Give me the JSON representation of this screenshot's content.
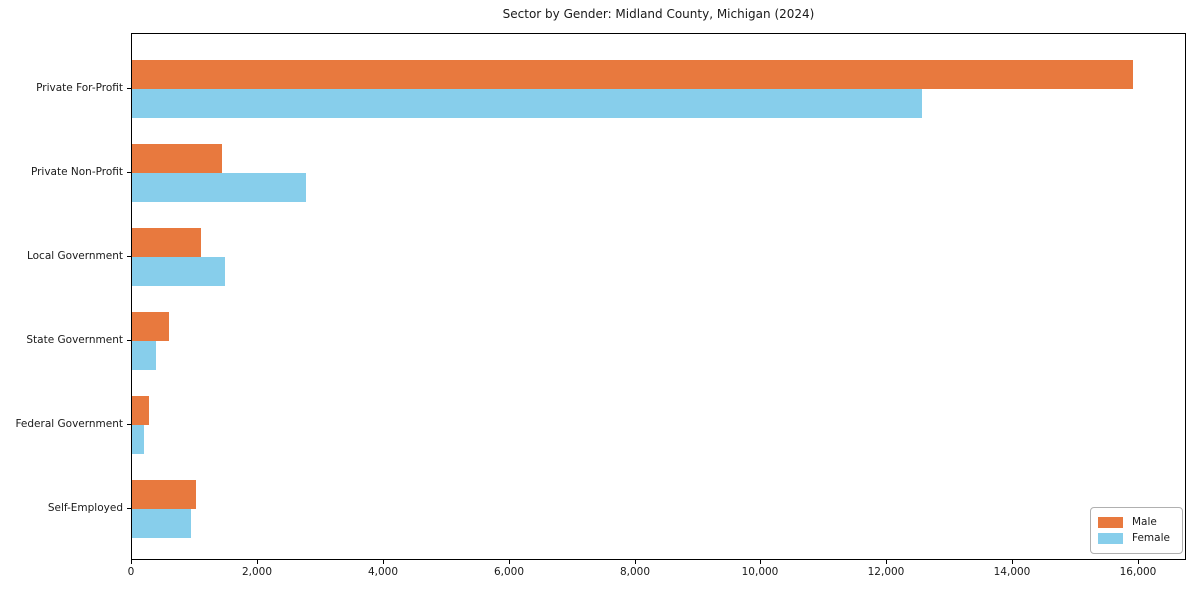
{
  "chart_data": {
    "type": "bar",
    "orientation": "horizontal",
    "title": "Sector by Gender: Midland County, Michigan (2024)",
    "categories": [
      "Private For-Profit",
      "Private Non-Profit",
      "Local Government",
      "State Government",
      "Federal Government",
      "Self-Employed"
    ],
    "series": [
      {
        "name": "Male",
        "color": "#e8793e",
        "values": [
          15900,
          1430,
          1090,
          590,
          270,
          1020
        ]
      },
      {
        "name": "Female",
        "color": "#87ceeb",
        "values": [
          12550,
          2760,
          1480,
          380,
          190,
          940
        ]
      }
    ],
    "xlabel": "",
    "ylabel": "",
    "xlim": [
      0,
      16730
    ],
    "xticks": {
      "values": [
        0,
        2000,
        4000,
        6000,
        8000,
        10000,
        12000,
        14000,
        16000
      ],
      "labels": [
        "0",
        "2,000",
        "4,000",
        "6,000",
        "8,000",
        "10,000",
        "12,000",
        "14,000",
        "16,000"
      ]
    },
    "grid": false,
    "legend_position": "lower right"
  }
}
